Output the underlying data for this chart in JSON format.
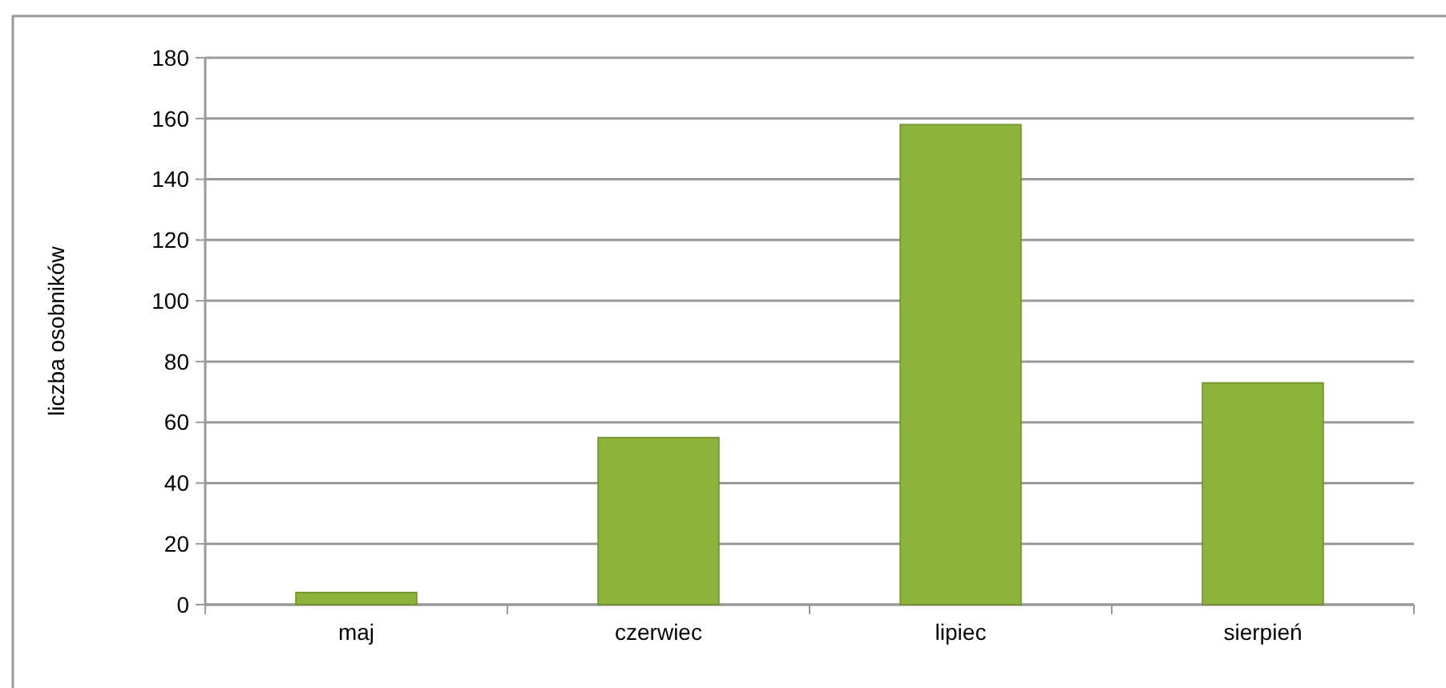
{
  "chart_data": {
    "type": "bar",
    "ylabel": "liczba osobników",
    "categories": [
      "maj",
      "czerwiec",
      "lipiec",
      "sierpień"
    ],
    "values": [
      4,
      55,
      158,
      73
    ],
    "color": "#8db33a",
    "ylim": [
      0,
      180
    ],
    "yticks": [
      0,
      20,
      40,
      60,
      80,
      100,
      120,
      140,
      160,
      180
    ],
    "grid": "y"
  }
}
